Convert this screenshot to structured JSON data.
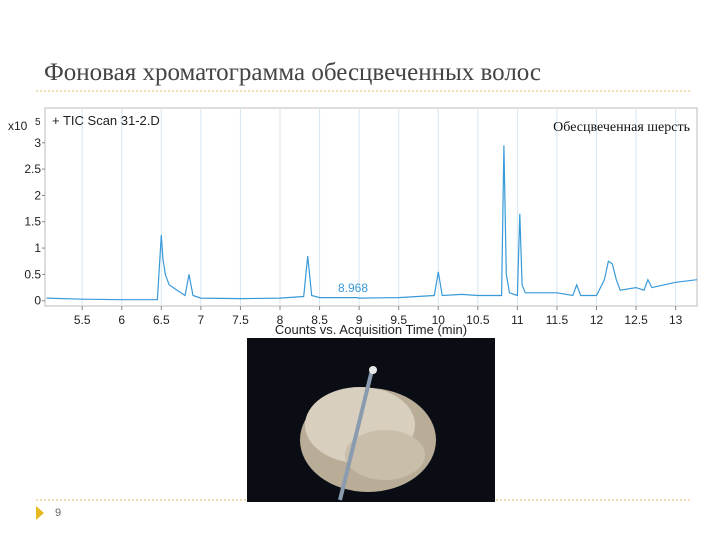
{
  "slide": {
    "title": "Фоновая хроматограмма обесцвеченных волос",
    "page_number": "9"
  },
  "chart_data": {
    "type": "line",
    "title": "+ TIC Scan 31-2.D",
    "sample_label": "Обесцвеченная шерсть",
    "y_scale_label": "x10",
    "y_scale_exponent": "5",
    "x_label": "Counts vs. Acquisition Time (min)",
    "annotations": [
      {
        "text": "8.968"
      }
    ],
    "color": "#3a9ad9",
    "grid": "x",
    "x": [
      5.05,
      5.5,
      6.0,
      6.45,
      6.5,
      6.52,
      6.55,
      6.6,
      6.7,
      6.8,
      6.85,
      6.9,
      7.0,
      7.5,
      8.0,
      8.3,
      8.35,
      8.4,
      8.5,
      8.968,
      9.0,
      9.5,
      9.95,
      10.0,
      10.05,
      10.3,
      10.5,
      10.8,
      10.83,
      10.86,
      10.9,
      11.0,
      11.03,
      11.06,
      11.1,
      11.5,
      11.7,
      11.75,
      11.8,
      12.0,
      12.1,
      12.15,
      12.2,
      12.25,
      12.3,
      12.5,
      12.6,
      12.65,
      12.7,
      13.0,
      13.27
    ],
    "values": [
      0.05,
      0.03,
      0.02,
      0.02,
      1.25,
      0.8,
      0.5,
      0.3,
      0.2,
      0.1,
      0.5,
      0.1,
      0.05,
      0.04,
      0.05,
      0.08,
      0.85,
      0.1,
      0.06,
      0.06,
      0.05,
      0.06,
      0.1,
      0.55,
      0.1,
      0.12,
      0.1,
      0.1,
      2.95,
      0.5,
      0.15,
      0.1,
      1.65,
      0.3,
      0.15,
      0.15,
      0.1,
      0.3,
      0.1,
      0.1,
      0.4,
      0.75,
      0.7,
      0.4,
      0.2,
      0.25,
      0.2,
      0.4,
      0.25,
      0.35,
      0.4
    ],
    "xlim": [
      5.03,
      13.27
    ],
    "ylim": [
      -0.1,
      3.66
    ],
    "xticks": [
      5.5,
      6,
      6.5,
      7,
      7.5,
      8,
      8.5,
      9,
      9.5,
      10,
      10.5,
      11,
      11.5,
      12,
      12.5,
      13
    ],
    "yticks": [
      0,
      0.5,
      1,
      1.5,
      2,
      2.5,
      3
    ]
  }
}
